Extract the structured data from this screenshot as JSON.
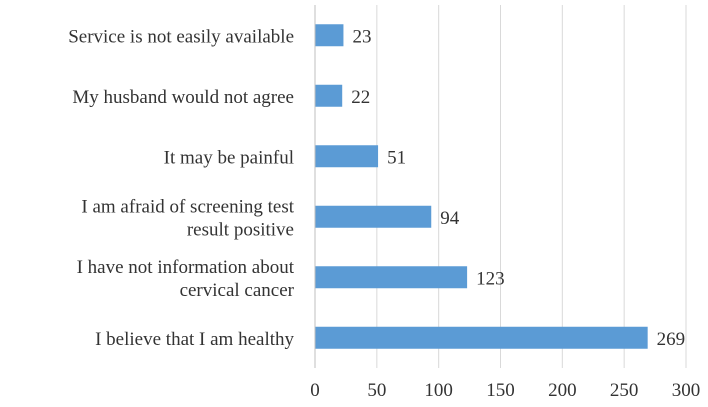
{
  "chart_data": {
    "type": "bar",
    "orientation": "horizontal",
    "categories": [
      [
        "Service is not easily available"
      ],
      [
        "My husband would not agree"
      ],
      [
        "It may be painful"
      ],
      [
        "I am afraid of screening test",
        "result positive"
      ],
      [
        "I have not information about",
        "cervical cancer"
      ],
      [
        "I believe that  I am healthy"
      ]
    ],
    "values": [
      23,
      22,
      51,
      94,
      123,
      269
    ],
    "data_labels": [
      "23",
      "22",
      "51",
      "94",
      "123",
      "269"
    ],
    "xlim": [
      0,
      300
    ],
    "xticks": [
      0,
      50,
      100,
      150,
      200,
      250,
      300
    ],
    "bar_color": "#5b9bd5",
    "grid": true,
    "legend": "none"
  }
}
